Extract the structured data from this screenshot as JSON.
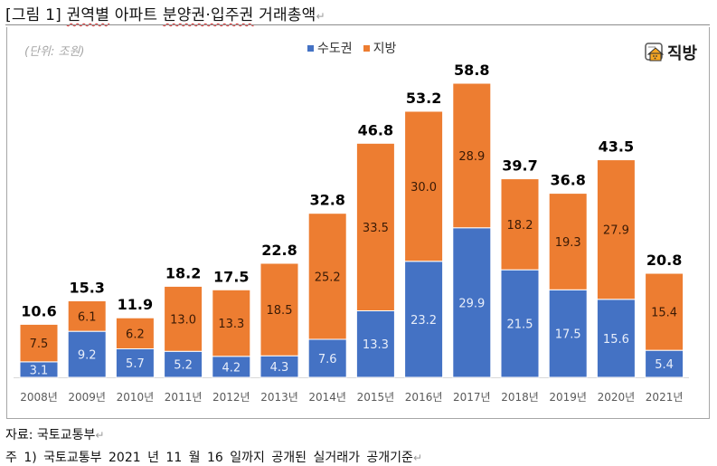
{
  "document": {
    "title_prefix": "[그림 1]",
    "title_word1": "권역별",
    "title_word2": "아파트",
    "title_word3": "분양권·입주권",
    "title_word4": "거래총액",
    "paragraph_mark": "↵",
    "source_text": "자료: 국토교통부",
    "note_text": "주 1) 국토교통부 2021 년 11 월 16 일까지 공개된 실거래가 공개기준"
  },
  "logo": {
    "icon": "house-icon",
    "text": "직방"
  },
  "chart_data": {
    "type": "bar",
    "stacked": true,
    "title": "권역별 아파트 분양권·입주권 거래총액",
    "unit_label": "(단위: 조원)",
    "xlabel": "",
    "ylabel": "",
    "ylim": [
      0,
      60
    ],
    "grid": false,
    "legend_position": "top-center",
    "categories": [
      "2008년",
      "2009년",
      "2010년",
      "2011년",
      "2012년",
      "2013년",
      "2014년",
      "2015년",
      "2016년",
      "2017년",
      "2018년",
      "2019년",
      "2020년",
      "2021년"
    ],
    "series": [
      {
        "name": "수도권",
        "color": "#4472c4",
        "values": [
          3.1,
          9.2,
          5.7,
          5.2,
          4.2,
          4.3,
          7.6,
          13.3,
          23.2,
          29.9,
          21.5,
          17.5,
          15.6,
          5.4
        ]
      },
      {
        "name": "지방",
        "color": "#ed7d31",
        "values": [
          7.5,
          6.1,
          6.2,
          13.0,
          13.3,
          18.5,
          25.2,
          33.5,
          30.0,
          28.9,
          18.2,
          19.3,
          27.9,
          15.4
        ]
      }
    ],
    "totals": [
      10.6,
      15.3,
      11.9,
      18.2,
      17.5,
      22.8,
      32.8,
      46.8,
      53.2,
      58.8,
      39.7,
      36.8,
      43.5,
      20.8
    ],
    "label_colors": {
      "inner_bottom": "#e8eefa",
      "inner_top": "#3a1a05",
      "total": "#000000"
    }
  }
}
